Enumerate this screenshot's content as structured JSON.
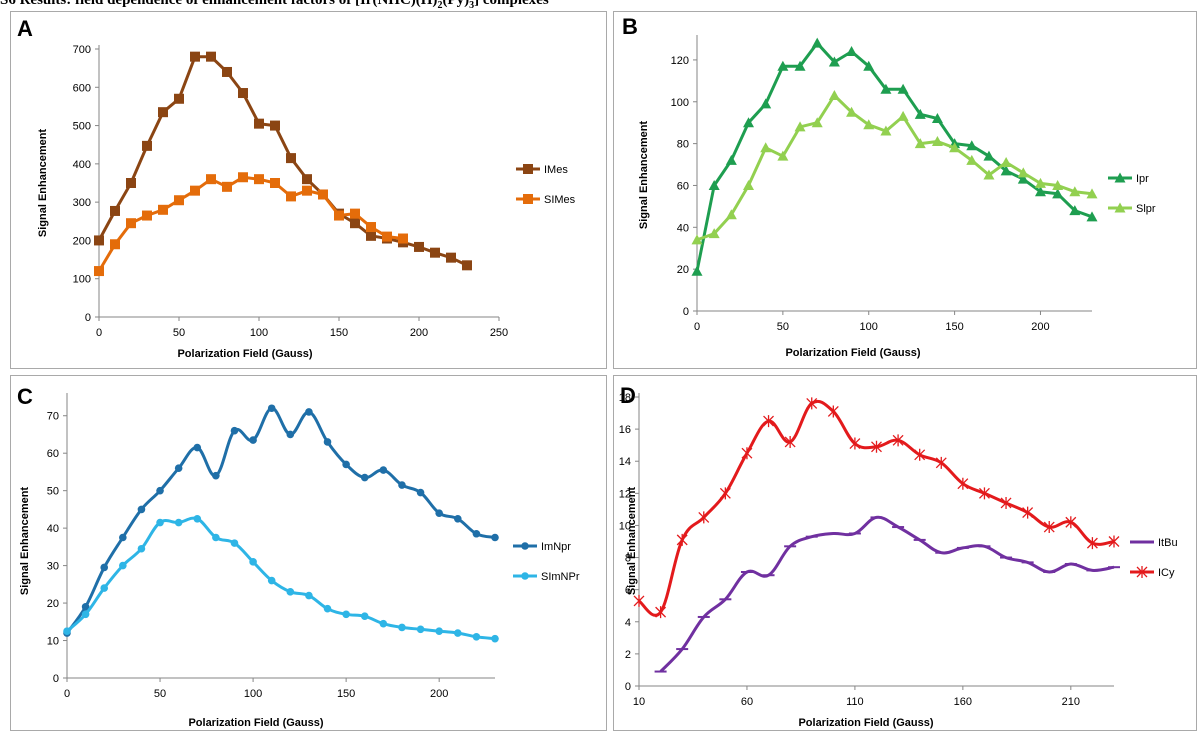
{
  "page": {
    "title_prefix": "S6 Results: field dependence of enhancement factors of [Ir(NHC)(H)",
    "title_sub1": "2",
    "title_mid": "(Py)",
    "title_sub2": "3",
    "title_suffix": "] complexes"
  },
  "chart_data": [
    {
      "panel": "A",
      "type": "line",
      "xlabel": "Polarization Field (Gauss)",
      "ylabel": "Signal Enhancement",
      "xlim": [
        0,
        250
      ],
      "ylim": [
        0,
        700
      ],
      "xticks": [
        0,
        50,
        100,
        150,
        200,
        250
      ],
      "yticks": [
        0,
        100,
        200,
        300,
        400,
        500,
        600,
        700
      ],
      "legend_position": "right",
      "series": [
        {
          "name": "IMes",
          "color": "#8b4513",
          "marker": "square",
          "smooth": false,
          "x": [
            0,
            10,
            20,
            30,
            40,
            50,
            60,
            70,
            80,
            90,
            100,
            110,
            120,
            130,
            140,
            150,
            160,
            170,
            180,
            190,
            200,
            210,
            220,
            230
          ],
          "y": [
            200,
            277,
            350,
            447,
            535,
            570,
            680,
            680,
            640,
            585,
            505,
            500,
            415,
            360,
            320,
            270,
            245,
            212,
            205,
            195,
            183,
            168,
            155,
            135
          ]
        },
        {
          "name": "SIMes",
          "color": "#e46c0a",
          "marker": "square",
          "smooth": false,
          "x": [
            0,
            10,
            20,
            30,
            40,
            50,
            60,
            70,
            80,
            90,
            100,
            110,
            120,
            130,
            140,
            150,
            160,
            170,
            180,
            190
          ],
          "y": [
            120,
            190,
            245,
            265,
            280,
            305,
            330,
            360,
            340,
            365,
            360,
            350,
            315,
            330,
            320,
            265,
            270,
            235,
            210,
            205
          ]
        }
      ]
    },
    {
      "panel": "B",
      "type": "line",
      "xlabel": "Polarization Field (Gauss)",
      "ylabel": "Signal Enhancement",
      "xlim": [
        0,
        230
      ],
      "ylim": [
        0,
        130
      ],
      "xticks": [
        0,
        50,
        100,
        150,
        200
      ],
      "yticks": [
        0,
        20,
        40,
        60,
        80,
        100,
        120
      ],
      "legend_position": "right",
      "series": [
        {
          "name": "Ipr",
          "color": "#1e9e50",
          "marker": "triangle",
          "smooth": false,
          "x": [
            0,
            10,
            20,
            30,
            40,
            50,
            60,
            70,
            80,
            90,
            100,
            110,
            120,
            130,
            140,
            150,
            160,
            170,
            180,
            190,
            200,
            210,
            220,
            230
          ],
          "y": [
            19,
            60,
            72,
            90,
            99,
            117,
            117,
            128,
            119,
            124,
            117,
            106,
            106,
            94,
            92,
            80,
            79,
            74,
            67,
            63,
            57,
            56,
            48,
            45
          ]
        },
        {
          "name": "Slpr",
          "color": "#92d050",
          "marker": "triangle",
          "smooth": false,
          "x": [
            0,
            10,
            20,
            30,
            40,
            50,
            60,
            70,
            80,
            90,
            100,
            110,
            120,
            130,
            140,
            150,
            160,
            170,
            180,
            190,
            200,
            210,
            220,
            230
          ],
          "y": [
            34,
            37,
            46,
            60,
            78,
            74,
            88,
            90,
            103,
            95,
            89,
            86,
            93,
            80,
            81,
            78,
            72,
            65,
            71,
            66,
            61,
            60,
            57,
            56
          ]
        }
      ]
    },
    {
      "panel": "C",
      "type": "line",
      "xlabel": "Polarization Field (Gauss)",
      "ylabel": "Signal Enhancement",
      "xlim": [
        0,
        230
      ],
      "ylim": [
        0,
        75
      ],
      "xticks": [
        0,
        50,
        100,
        150,
        200
      ],
      "yticks": [
        0,
        10,
        20,
        30,
        40,
        50,
        60,
        70
      ],
      "legend_position": "right",
      "series": [
        {
          "name": "ImNpr",
          "color": "#1f6fa8",
          "marker": "circle",
          "smooth": true,
          "x": [
            0,
            10,
            20,
            30,
            40,
            50,
            60,
            70,
            80,
            90,
            100,
            110,
            120,
            130,
            140,
            150,
            160,
            170,
            180,
            190,
            200,
            210,
            220,
            230
          ],
          "y": [
            12,
            19,
            29.5,
            37.5,
            45,
            50,
            56,
            61.5,
            54,
            66,
            63.5,
            72,
            65,
            71,
            63,
            57,
            53.5,
            55.5,
            51.5,
            49.5,
            44,
            42.5,
            38.5,
            37.5
          ]
        },
        {
          "name": "SImNPr",
          "color": "#2eb5e6",
          "marker": "circle",
          "smooth": true,
          "x": [
            0,
            10,
            20,
            30,
            40,
            50,
            60,
            70,
            80,
            90,
            100,
            110,
            120,
            130,
            140,
            150,
            160,
            170,
            180,
            190,
            200,
            210,
            220,
            230
          ],
          "y": [
            12.5,
            17,
            24,
            30,
            34.5,
            41.5,
            41.5,
            42.5,
            37.5,
            36,
            31,
            26,
            23,
            22,
            18.5,
            17,
            16.5,
            14.5,
            13.5,
            13,
            12.5,
            12,
            11,
            10.5
          ]
        }
      ]
    },
    {
      "panel": "D",
      "type": "line",
      "xlabel": "Polarization Field (Gauss)",
      "ylabel": "Signal Enhancement",
      "xlim": [
        10,
        230
      ],
      "ylim": [
        0,
        18
      ],
      "xticks": [
        10,
        60,
        110,
        160,
        210
      ],
      "yticks": [
        0,
        2,
        4,
        6,
        8,
        10,
        12,
        14,
        16,
        18
      ],
      "legend_position": "right",
      "series": [
        {
          "name": "ItBu",
          "color": "#7030a0",
          "marker": "dash",
          "smooth": true,
          "x": [
            20,
            30,
            40,
            50,
            60,
            70,
            80,
            90,
            100,
            110,
            120,
            130,
            140,
            150,
            160,
            170,
            180,
            190,
            200,
            210,
            220,
            230
          ],
          "y": [
            0.9,
            2.3,
            4.3,
            5.4,
            7.1,
            6.9,
            8.7,
            9.3,
            9.5,
            9.5,
            10.5,
            9.9,
            9.1,
            8.3,
            8.6,
            8.7,
            8,
            7.7,
            7.1,
            7.6,
            7.2,
            7.4
          ]
        },
        {
          "name": "ICy",
          "color": "#e31a1c",
          "marker": "star",
          "smooth": true,
          "x": [
            10,
            20,
            30,
            40,
            50,
            60,
            70,
            80,
            90,
            100,
            110,
            120,
            130,
            140,
            150,
            160,
            170,
            180,
            190,
            200,
            210,
            220,
            230
          ],
          "y": [
            5.3,
            4.6,
            9.1,
            10.5,
            12,
            14.5,
            16.5,
            15.2,
            17.6,
            17.1,
            15.1,
            14.9,
            15.3,
            14.4,
            13.9,
            12.6,
            12,
            11.4,
            10.8,
            9.9,
            10.2,
            8.9,
            9
          ]
        }
      ]
    }
  ]
}
